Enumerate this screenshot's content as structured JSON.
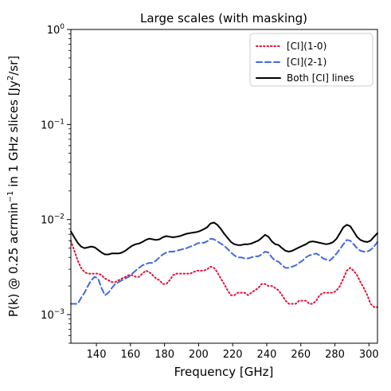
{
  "chart_data": {
    "type": "line",
    "title": "Large scales (with masking)",
    "xlabel": "Frequency [GHz]",
    "ylabel_parts": {
      "pre": "P(k) @ 0.25 acrmin",
      "exp1": "−1",
      "mid": " in 1 GHz slices [Jy",
      "exp2": "2",
      "post": "/sr]"
    },
    "yscale": "log",
    "xlim": [
      125,
      305
    ],
    "ylim": [
      0.0005,
      1
    ],
    "x_ticks": [
      "140",
      "160",
      "180",
      "200",
      "220",
      "240",
      "260",
      "280",
      "300"
    ],
    "y_ticks": [
      {
        "base": "10",
        "exp": "−3"
      },
      {
        "base": "10",
        "exp": "−2"
      },
      {
        "base": "10",
        "exp": "−1"
      },
      {
        "base": "10",
        "exp": "0"
      }
    ],
    "legend_position": "top-right",
    "x": [
      125,
      127,
      129,
      131,
      133,
      135,
      137,
      139,
      141,
      143,
      145,
      147,
      149,
      151,
      153,
      155,
      157,
      159,
      161,
      163,
      165,
      167,
      169,
      171,
      173,
      175,
      177,
      179,
      181,
      183,
      185,
      187,
      189,
      191,
      193,
      195,
      197,
      199,
      201,
      203,
      205,
      207,
      209,
      211,
      213,
      215,
      217,
      219,
      221,
      223,
      225,
      227,
      229,
      231,
      233,
      235,
      237,
      239,
      241,
      243,
      245,
      247,
      249,
      251,
      253,
      255,
      257,
      259,
      261,
      263,
      265,
      267,
      269,
      271,
      273,
      275,
      277,
      279,
      281,
      283,
      285,
      287,
      289,
      291,
      293,
      295,
      297,
      299,
      301,
      303,
      305
    ],
    "series": [
      {
        "name": "[CI](1-0)",
        "color": "#dc143c",
        "dash": "dotted",
        "values": [
          0.006,
          0.0047,
          0.0037,
          0.0031,
          0.0028,
          0.0027,
          0.0027,
          0.0027,
          0.0027,
          0.0026,
          0.0024,
          0.0023,
          0.0022,
          0.0022,
          0.0023,
          0.0024,
          0.0025,
          0.0026,
          0.0026,
          0.0025,
          0.0025,
          0.0027,
          0.0029,
          0.0028,
          0.0026,
          0.0024,
          0.0023,
          0.0021,
          0.0021,
          0.0023,
          0.0026,
          0.0027,
          0.0027,
          0.0027,
          0.0027,
          0.0027,
          0.0028,
          0.0029,
          0.0029,
          0.0029,
          0.003,
          0.0032,
          0.0031,
          0.0028,
          0.0024,
          0.0021,
          0.0018,
          0.0016,
          0.0016,
          0.0017,
          0.0017,
          0.0017,
          0.0016,
          0.0017,
          0.0018,
          0.0019,
          0.0021,
          0.0021,
          0.002,
          0.002,
          0.0019,
          0.0018,
          0.0016,
          0.0014,
          0.0013,
          0.0013,
          0.0013,
          0.0014,
          0.0014,
          0.0014,
          0.0013,
          0.0013,
          0.0014,
          0.0016,
          0.0017,
          0.0017,
          0.0017,
          0.0017,
          0.0018,
          0.002,
          0.0024,
          0.0029,
          0.0031,
          0.0029,
          0.0026,
          0.0022,
          0.0019,
          0.0016,
          0.0013,
          0.0012,
          0.0012
        ]
      },
      {
        "name": "[CI](2-1)",
        "color": "#4169e1",
        "dash": "dashed",
        "values": [
          0.0013,
          0.0013,
          0.0013,
          0.0015,
          0.0017,
          0.002,
          0.0023,
          0.0025,
          0.0024,
          0.0019,
          0.0016,
          0.0017,
          0.0019,
          0.0021,
          0.0022,
          0.0023,
          0.0024,
          0.0025,
          0.0027,
          0.0029,
          0.0031,
          0.0033,
          0.0034,
          0.0035,
          0.0035,
          0.0037,
          0.004,
          0.0043,
          0.0045,
          0.0046,
          0.0046,
          0.0047,
          0.0048,
          0.0049,
          0.005,
          0.0052,
          0.0053,
          0.0056,
          0.0057,
          0.0057,
          0.0059,
          0.0063,
          0.0062,
          0.0059,
          0.0056,
          0.0053,
          0.0049,
          0.0045,
          0.0042,
          0.004,
          0.004,
          0.0039,
          0.0039,
          0.004,
          0.0041,
          0.0041,
          0.0043,
          0.0046,
          0.0045,
          0.004,
          0.0037,
          0.0036,
          0.0033,
          0.0031,
          0.0031,
          0.0032,
          0.0033,
          0.0035,
          0.0037,
          0.004,
          0.0042,
          0.0043,
          0.0044,
          0.0042,
          0.0039,
          0.0038,
          0.0037,
          0.004,
          0.0044,
          0.0049,
          0.0055,
          0.0061,
          0.006,
          0.0055,
          0.005,
          0.0047,
          0.0046,
          0.0046,
          0.0048,
          0.0052,
          0.0058
        ]
      },
      {
        "name": "Both [CI] lines",
        "color": "#000000",
        "dash": "solid",
        "values": [
          0.0075,
          0.0065,
          0.0057,
          0.0052,
          0.005,
          0.0051,
          0.0052,
          0.0051,
          0.0048,
          0.0045,
          0.0043,
          0.0043,
          0.0044,
          0.0044,
          0.0044,
          0.0045,
          0.0047,
          0.005,
          0.0053,
          0.0055,
          0.0056,
          0.0058,
          0.0061,
          0.0063,
          0.0062,
          0.0061,
          0.0062,
          0.0065,
          0.0067,
          0.0066,
          0.0065,
          0.0066,
          0.0067,
          0.0069,
          0.0071,
          0.0072,
          0.0073,
          0.0074,
          0.0076,
          0.0079,
          0.0083,
          0.0091,
          0.0093,
          0.0088,
          0.008,
          0.0071,
          0.0064,
          0.0058,
          0.0055,
          0.0054,
          0.0054,
          0.0055,
          0.0055,
          0.0056,
          0.0058,
          0.006,
          0.0064,
          0.0069,
          0.0066,
          0.0059,
          0.0055,
          0.0054,
          0.005,
          0.0047,
          0.0046,
          0.0047,
          0.0049,
          0.0051,
          0.0053,
          0.0055,
          0.0058,
          0.0059,
          0.0058,
          0.0057,
          0.0056,
          0.0055,
          0.0056,
          0.0058,
          0.0063,
          0.0072,
          0.0083,
          0.0088,
          0.0085,
          0.0075,
          0.0066,
          0.0061,
          0.0059,
          0.0058,
          0.006,
          0.0066,
          0.0072
        ]
      }
    ]
  }
}
